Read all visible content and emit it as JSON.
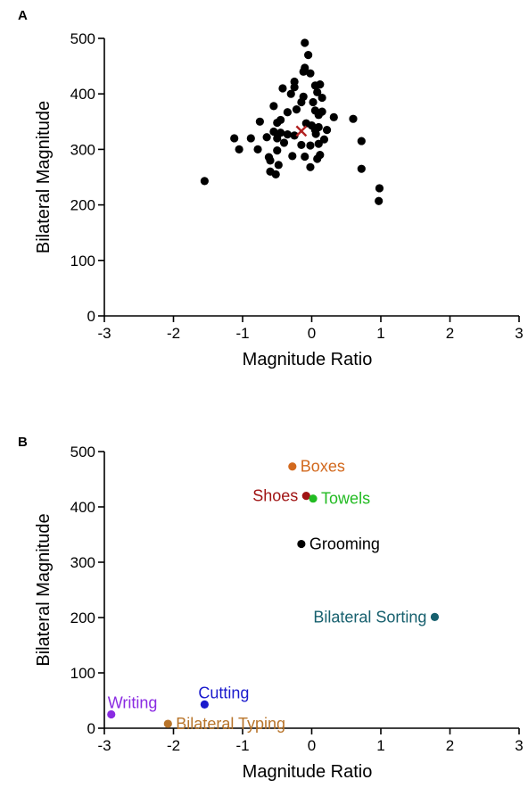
{
  "chart_data": [
    {
      "panel": "A",
      "type": "scatter",
      "xlabel": "Magnitude Ratio",
      "ylabel": "Bilateral Magnitude",
      "xlim": [
        -3,
        3
      ],
      "ylim": [
        0,
        500
      ],
      "xticks": [
        -3,
        -2,
        -1,
        0,
        1,
        2,
        3
      ],
      "yticks": [
        0,
        100,
        200,
        300,
        400,
        500
      ],
      "grid": false,
      "marker_color": "#000000",
      "mean_marker": {
        "x": -0.15,
        "y": 333,
        "marker": "x",
        "color": "#b22222"
      },
      "points": [
        {
          "x": -0.1,
          "y": 492
        },
        {
          "x": -0.05,
          "y": 470
        },
        {
          "x": -0.1,
          "y": 447
        },
        {
          "x": -0.12,
          "y": 440
        },
        {
          "x": -0.02,
          "y": 437
        },
        {
          "x": -0.25,
          "y": 422
        },
        {
          "x": -0.25,
          "y": 412
        },
        {
          "x": 0.05,
          "y": 415
        },
        {
          "x": 0.12,
          "y": 417
        },
        {
          "x": -0.42,
          "y": 410
        },
        {
          "x": 0.08,
          "y": 403
        },
        {
          "x": -0.3,
          "y": 400
        },
        {
          "x": -0.12,
          "y": 395
        },
        {
          "x": 0.15,
          "y": 393
        },
        {
          "x": -0.15,
          "y": 385
        },
        {
          "x": 0.02,
          "y": 385
        },
        {
          "x": -0.55,
          "y": 378
        },
        {
          "x": -0.22,
          "y": 372
        },
        {
          "x": 0.05,
          "y": 370
        },
        {
          "x": 0.15,
          "y": 368
        },
        {
          "x": -0.35,
          "y": 367
        },
        {
          "x": 0.1,
          "y": 362
        },
        {
          "x": 0.32,
          "y": 358
        },
        {
          "x": 0.6,
          "y": 355
        },
        {
          "x": -0.45,
          "y": 353
        },
        {
          "x": -0.75,
          "y": 350
        },
        {
          "x": -0.5,
          "y": 348
        },
        {
          "x": -0.08,
          "y": 347
        },
        {
          "x": 0.0,
          "y": 343
        },
        {
          "x": 0.1,
          "y": 340
        },
        {
          "x": 0.05,
          "y": 335
        },
        {
          "x": 0.22,
          "y": 335
        },
        {
          "x": -0.55,
          "y": 332
        },
        {
          "x": -0.45,
          "y": 330
        },
        {
          "x": -0.35,
          "y": 327
        },
        {
          "x": 0.06,
          "y": 328
        },
        {
          "x": -0.25,
          "y": 325
        },
        {
          "x": -0.65,
          "y": 322
        },
        {
          "x": -1.12,
          "y": 320
        },
        {
          "x": -0.88,
          "y": 320
        },
        {
          "x": -0.5,
          "y": 320
        },
        {
          "x": 0.18,
          "y": 318
        },
        {
          "x": 0.72,
          "y": 315
        },
        {
          "x": -0.4,
          "y": 312
        },
        {
          "x": 0.1,
          "y": 310
        },
        {
          "x": -0.15,
          "y": 308
        },
        {
          "x": -0.02,
          "y": 307
        },
        {
          "x": -1.05,
          "y": 300
        },
        {
          "x": -0.78,
          "y": 300
        },
        {
          "x": -0.5,
          "y": 298
        },
        {
          "x": -0.28,
          "y": 288
        },
        {
          "x": -0.62,
          "y": 286
        },
        {
          "x": -0.1,
          "y": 287
        },
        {
          "x": 0.12,
          "y": 290
        },
        {
          "x": 0.08,
          "y": 283
        },
        {
          "x": -0.6,
          "y": 280
        },
        {
          "x": -0.48,
          "y": 272
        },
        {
          "x": -0.02,
          "y": 268
        },
        {
          "x": 0.72,
          "y": 265
        },
        {
          "x": -0.6,
          "y": 260
        },
        {
          "x": -0.52,
          "y": 255
        },
        {
          "x": -1.55,
          "y": 243
        },
        {
          "x": 0.98,
          "y": 230
        },
        {
          "x": 0.97,
          "y": 207
        }
      ]
    },
    {
      "panel": "B",
      "type": "scatter",
      "xlabel": "Magnitude Ratio",
      "ylabel": "Bilateral Magnitude",
      "xlim": [
        -3,
        3
      ],
      "ylim": [
        0,
        500
      ],
      "xticks": [
        -3,
        -2,
        -1,
        0,
        1,
        2,
        3
      ],
      "yticks": [
        0,
        100,
        200,
        300,
        400,
        500
      ],
      "grid": false,
      "points": [
        {
          "label": "Boxes",
          "x": -0.28,
          "y": 473,
          "color": "#d2691e",
          "label_pos": "right"
        },
        {
          "label": "Shoes",
          "x": -0.08,
          "y": 420,
          "color": "#a01414",
          "label_pos": "left"
        },
        {
          "label": "Towels",
          "x": 0.02,
          "y": 415,
          "color": "#22bb22",
          "label_pos": "right"
        },
        {
          "label": "Grooming",
          "x": -0.15,
          "y": 333,
          "color": "#000000",
          "label_pos": "right"
        },
        {
          "label": "Bilateral Sorting",
          "x": 1.78,
          "y": 201,
          "color": "#17606e",
          "label_pos": "left"
        },
        {
          "label": "Cutting",
          "x": -1.55,
          "y": 43,
          "color": "#1a1acd",
          "label_pos": "above"
        },
        {
          "label": "Writing",
          "x": -2.9,
          "y": 25,
          "color": "#8a2be2",
          "label_pos": "above-right"
        },
        {
          "label": "Bilateral Typing",
          "x": -2.08,
          "y": 8,
          "color": "#b8742a",
          "label_pos": "right"
        }
      ]
    }
  ]
}
